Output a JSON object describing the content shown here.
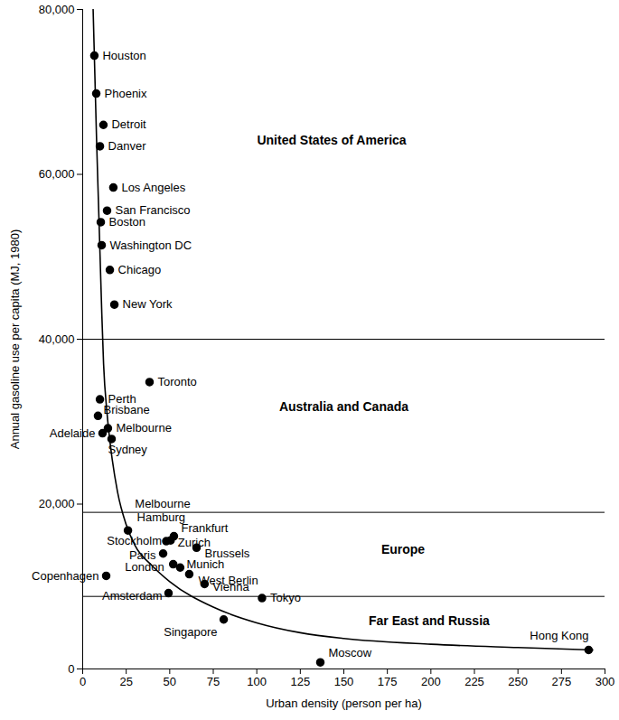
{
  "chart_data": {
    "type": "scatter",
    "x_label": "Urban density (person per ha)",
    "y_label": "Annual gasoline use per capita (MJ, 1980)",
    "xlim": [
      0,
      300
    ],
    "xticks": [
      0,
      25,
      50,
      75,
      100,
      125,
      150,
      175,
      200,
      225,
      250,
      275,
      300
    ],
    "ylim": [
      0,
      80000
    ],
    "yticks": [
      0,
      {
        "value": 20000,
        "label": "20,000"
      },
      {
        "value": 40000,
        "label": "40,000"
      },
      {
        "value": 60000,
        "label": "60,000"
      },
      {
        "value": 80000,
        "label": "80,000"
      }
    ],
    "color": "#000000",
    "points": {
      "labels": [
        "Houston",
        "Phoenix",
        "Detroit",
        "Danver",
        "Los Angeles",
        "San Francisco",
        "Boston",
        "Washington DC",
        "Chicago",
        "New York",
        "Toronto",
        "Perth",
        "Brisbane",
        "Melbourne",
        "Adelaide",
        "Sydney",
        "Hamburg",
        "Frankfurt",
        "Zurich",
        "Stockholm",
        "Brussels",
        "Paris",
        "London",
        "Munich",
        "West Berlin",
        "Copenhagen",
        "Vienna",
        "Amsterdam",
        "Tokyo",
        "Singapore",
        "Moscow",
        "Hong Kong"
      ],
      "x": [
        6.7,
        7.8,
        11.9,
        9.9,
        17.6,
        14,
        10.4,
        10.9,
        15.6,
        18.2,
        38.4,
        9.9,
        8.8,
        14.5,
        11.4,
        16.6,
        26,
        52.4,
        50.5,
        48,
        65.4,
        46.2,
        52,
        56,
        61.2,
        13.5,
        70,
        49.3,
        103,
        81,
        136.5,
        290.6
      ],
      "y": [
        74400,
        69800,
        66000,
        63400,
        58400,
        55600,
        54200,
        51400,
        48400,
        44200,
        34800,
        32700,
        30700,
        29200,
        28600,
        27900,
        16800,
        16100,
        15600,
        15500,
        14700,
        14000,
        12700,
        12300,
        11500,
        11300,
        10300,
        9200,
        8600,
        6000,
        800,
        2300
      ]
    },
    "curve": {
      "x": [
        6,
        7,
        8,
        9,
        10,
        11,
        12,
        14,
        16,
        20,
        25,
        30,
        40,
        50,
        75,
        100,
        125,
        150,
        200,
        250,
        293
      ],
      "y": [
        80000,
        72000,
        64000,
        57000,
        50000,
        43000,
        37000,
        31000,
        27000,
        21500,
        17500,
        15000,
        12500,
        10600,
        7500,
        5600,
        4400,
        3700,
        3000,
        2600,
        2300
      ]
    },
    "separators": [
      40000,
      19000,
      8800
    ],
    "regions": [
      {
        "text": "United States of America",
        "x": 143,
        "y": 64100
      },
      {
        "text": "Australia and Canada",
        "x": 150,
        "y": 31800
      },
      {
        "text": "Europe",
        "x": 184,
        "y": 14500
      },
      {
        "text": "Far East and Russia",
        "x": 199,
        "y": 5800
      }
    ],
    "annotations": [
      {
        "text": "Melbourne",
        "x": 30,
        "y": 20000
      }
    ]
  }
}
